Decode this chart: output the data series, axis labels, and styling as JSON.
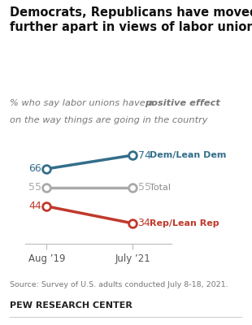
{
  "title": "Democrats, Republicans have moved\nfurther apart in views of labor unions",
  "x_labels": [
    "Aug ’19",
    "July ’21"
  ],
  "x_positions": [
    0,
    1
  ],
  "lines": [
    {
      "label": "Dem/Lean Dem",
      "values": [
        66,
        74
      ],
      "color": "#336e8a",
      "label_color": "#336e8a",
      "label_weight": "bold"
    },
    {
      "label": "Total",
      "values": [
        55,
        55
      ],
      "color": "#aaaaaa",
      "label_color": "#888888",
      "label_weight": "normal"
    },
    {
      "label": "Rep/Lean Rep",
      "values": [
        44,
        34
      ],
      "color": "#c0392b",
      "label_color": "#c0392b",
      "label_weight": "bold"
    }
  ],
  "source_text": "Source: Survey of U.S. adults conducted July 8-18, 2021.",
  "footer_text": "PEW RESEARCH CENTER",
  "background_color": "#ffffff",
  "ylim": [
    22,
    85
  ],
  "xlim": [
    -0.25,
    1.45
  ]
}
